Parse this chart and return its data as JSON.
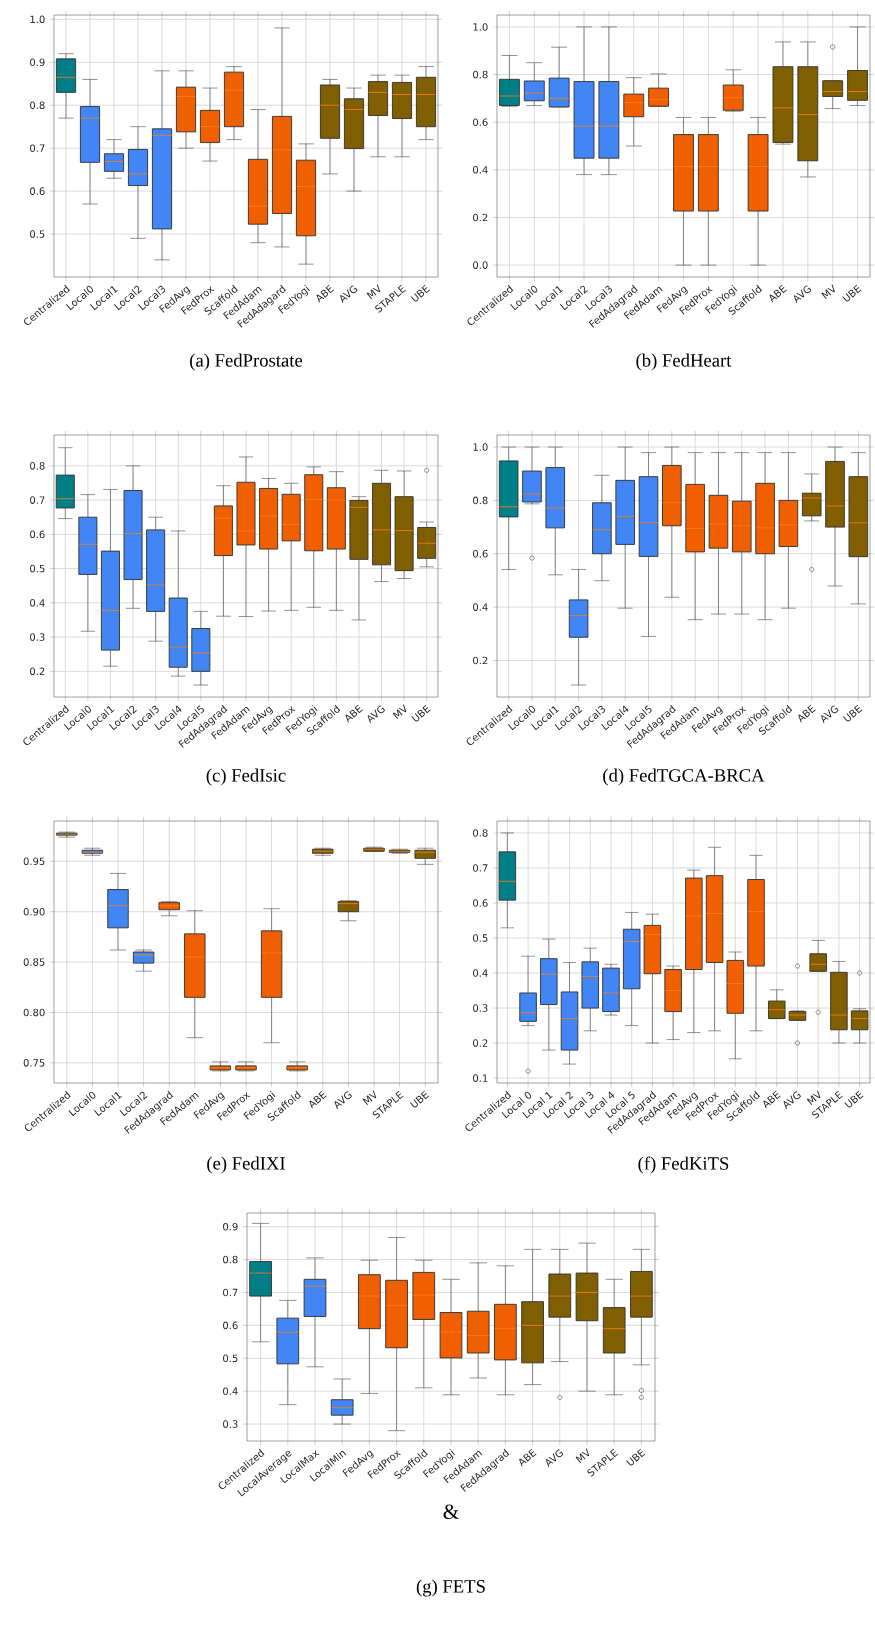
{
  "chart_data": [
    {
      "type": "box",
      "title": "(a) FedProstate",
      "grid": true,
      "ylim": [
        0.4,
        1.01
      ],
      "yticks": [
        0.5,
        0.6,
        0.7,
        0.8,
        0.9,
        {
          "value": 1.0,
          "label": "1.0"
        }
      ],
      "categories": [
        "Centralized",
        "Local0",
        "Local1",
        "Local2",
        "Local3",
        "FedAvg",
        "FedProx",
        "Scaffold",
        "FedAdam",
        "FedAdagard",
        "FedYogi",
        "ABE",
        "AVG",
        "MV",
        "STAPLE",
        "UBE"
      ],
      "colors": [
        "#007f87",
        "#4285f4",
        "#4285f4",
        "#4285f4",
        "#4285f4",
        "#f06000",
        "#f06000",
        "#f06000",
        "#f06000",
        "#f06000",
        "#f06000",
        "#7f5f00",
        "#7f5f00",
        "#7f5f00",
        "#7f5f00",
        "#7f5f00"
      ],
      "boxes": [
        {
          "low": 0.77,
          "q1": 0.83,
          "median": 0.865,
          "q3": 0.908,
          "high": 0.92
        },
        {
          "low": 0.57,
          "q1": 0.667,
          "median": 0.77,
          "q3": 0.797,
          "high": 0.86
        },
        {
          "low": 0.63,
          "q1": 0.646,
          "median": 0.669,
          "q3": 0.687,
          "high": 0.72
        },
        {
          "low": 0.49,
          "q1": 0.613,
          "median": 0.64,
          "q3": 0.697,
          "high": 0.75
        },
        {
          "low": 0.44,
          "q1": 0.512,
          "median": 0.73,
          "q3": 0.745,
          "high": 0.88
        },
        {
          "low": 0.7,
          "q1": 0.738,
          "median": 0.82,
          "q3": 0.842,
          "high": 0.88
        },
        {
          "low": 0.67,
          "q1": 0.713,
          "median": 0.75,
          "q3": 0.788,
          "high": 0.84
        },
        {
          "low": 0.72,
          "q1": 0.75,
          "median": 0.835,
          "q3": 0.877,
          "high": 0.89
        },
        {
          "low": 0.48,
          "q1": 0.523,
          "median": 0.565,
          "q3": 0.674,
          "high": 0.79
        },
        {
          "low": 0.47,
          "q1": 0.548,
          "median": 0.696,
          "q3": 0.774,
          "high": 0.98
        },
        {
          "low": 0.43,
          "q1": 0.496,
          "median": 0.611,
          "q3": 0.672,
          "high": 0.71
        },
        {
          "low": 0.64,
          "q1": 0.723,
          "median": 0.8,
          "q3": 0.847,
          "high": 0.86
        },
        {
          "low": 0.6,
          "q1": 0.699,
          "median": 0.79,
          "q3": 0.815,
          "high": 0.84
        },
        {
          "low": 0.68,
          "q1": 0.776,
          "median": 0.83,
          "q3": 0.855,
          "high": 0.87
        },
        {
          "low": 0.68,
          "q1": 0.769,
          "median": 0.825,
          "q3": 0.853,
          "high": 0.87
        },
        {
          "low": 0.72,
          "q1": 0.75,
          "median": 0.825,
          "q3": 0.865,
          "high": 0.89
        }
      ]
    },
    {
      "type": "box",
      "title": "(b) FedHeart",
      "grid": true,
      "ylim": [
        -0.05,
        1.05
      ],
      "yticks": [
        {
          "value": 0.0,
          "label": "0.0"
        },
        0.2,
        0.4,
        0.6,
        0.8,
        {
          "value": 1.0,
          "label": "1.0"
        }
      ],
      "categories": [
        "Centralized",
        "Local0",
        "Local1",
        "Local2",
        "Local3",
        "FedAdagrad",
        "FedAdam",
        "FedAvg",
        "FedProx",
        "FedYogi",
        "Scaffold",
        "ABE",
        "AVG",
        "MV",
        "UBE"
      ],
      "colors": [
        "#007f87",
        "#4285f4",
        "#4285f4",
        "#4285f4",
        "#4285f4",
        "#f06000",
        "#f06000",
        "#f06000",
        "#f06000",
        "#f06000",
        "#f06000",
        "#7f5f00",
        "#7f5f00",
        "#7f5f00",
        "#7f5f00"
      ],
      "boxes": [
        {
          "low": 0.667,
          "q1": 0.67,
          "median": 0.71,
          "q3": 0.78,
          "high": 0.88
        },
        {
          "low": 0.67,
          "q1": 0.69,
          "median": 0.722,
          "q3": 0.773,
          "high": 0.85
        },
        {
          "low": 0.664,
          "q1": 0.664,
          "median": 0.7,
          "q3": 0.785,
          "high": 0.915
        },
        {
          "low": 0.38,
          "q1": 0.449,
          "median": 0.584,
          "q3": 0.771,
          "high": 1.0
        },
        {
          "low": 0.38,
          "q1": 0.449,
          "median": 0.584,
          "q3": 0.771,
          "high": 1.0
        },
        {
          "low": 0.5,
          "q1": 0.623,
          "median": 0.682,
          "q3": 0.718,
          "high": 0.787
        },
        {
          "low": 0.667,
          "q1": 0.667,
          "median": 0.695,
          "q3": 0.743,
          "high": 0.803
        },
        {
          "low": 0.0,
          "q1": 0.227,
          "median": 0.414,
          "q3": 0.548,
          "high": 0.62
        },
        {
          "low": 0.0,
          "q1": 0.227,
          "median": 0.414,
          "q3": 0.548,
          "high": 0.62
        },
        {
          "low": 0.646,
          "q1": 0.65,
          "median": 0.703,
          "q3": 0.756,
          "high": 0.82
        },
        {
          "low": 0.0,
          "q1": 0.227,
          "median": 0.414,
          "q3": 0.548,
          "high": 0.62
        },
        {
          "low": 0.508,
          "q1": 0.515,
          "median": 0.66,
          "q3": 0.833,
          "high": 0.937
        },
        {
          "low": 0.37,
          "q1": 0.438,
          "median": 0.632,
          "q3": 0.833,
          "high": 0.937
        },
        {
          "low": 0.657,
          "q1": 0.708,
          "median": 0.729,
          "q3": 0.774,
          "high": 0.774,
          "outliers": [
            0.916
          ]
        },
        {
          "low": 0.67,
          "q1": 0.692,
          "median": 0.729,
          "q3": 0.817,
          "high": 1.0
        }
      ]
    },
    {
      "type": "box",
      "title": "(c) FedIsic",
      "grid": true,
      "ylim": [
        0.125,
        0.89
      ],
      "yticks": [
        0.2,
        0.3,
        0.4,
        0.5,
        0.6,
        0.7,
        0.8
      ],
      "categories": [
        "Centralized",
        "Local0",
        "Local1",
        "Local2",
        "Local3",
        "Local4",
        "Local5",
        "FedAdagrad",
        "FedAdam",
        "FedAvg",
        "FedProx",
        "FedYogi",
        "Scaffold",
        "ABE",
        "AVG",
        "MV",
        "UBE"
      ],
      "colors": [
        "#007f87",
        "#4285f4",
        "#4285f4",
        "#4285f4",
        "#4285f4",
        "#4285f4",
        "#4285f4",
        "#f06000",
        "#f06000",
        "#f06000",
        "#f06000",
        "#f06000",
        "#f06000",
        "#7f5f00",
        "#7f5f00",
        "#7f5f00",
        "#7f5f00"
      ],
      "boxes": [
        {
          "low": 0.646,
          "q1": 0.677,
          "median": 0.704,
          "q3": 0.773,
          "high": 0.853
        },
        {
          "low": 0.317,
          "q1": 0.483,
          "median": 0.571,
          "q3": 0.65,
          "high": 0.716
        },
        {
          "low": 0.215,
          "q1": 0.262,
          "median": 0.378,
          "q3": 0.551,
          "high": 0.731
        },
        {
          "low": 0.384,
          "q1": 0.468,
          "median": 0.602,
          "q3": 0.728,
          "high": 0.8
        },
        {
          "low": 0.288,
          "q1": 0.375,
          "median": 0.452,
          "q3": 0.613,
          "high": 0.65
        },
        {
          "low": 0.186,
          "q1": 0.212,
          "median": 0.271,
          "q3": 0.414,
          "high": 0.61
        },
        {
          "low": 0.16,
          "q1": 0.2,
          "median": 0.254,
          "q3": 0.325,
          "high": 0.375
        },
        {
          "low": 0.361,
          "q1": 0.538,
          "median": 0.647,
          "q3": 0.683,
          "high": 0.742
        },
        {
          "low": 0.36,
          "q1": 0.569,
          "median": 0.61,
          "q3": 0.752,
          "high": 0.826
        },
        {
          "low": 0.376,
          "q1": 0.557,
          "median": 0.653,
          "q3": 0.734,
          "high": 0.763
        },
        {
          "low": 0.378,
          "q1": 0.581,
          "median": 0.629,
          "q3": 0.717,
          "high": 0.749
        },
        {
          "low": 0.387,
          "q1": 0.552,
          "median": 0.702,
          "q3": 0.774,
          "high": 0.797
        },
        {
          "low": 0.378,
          "q1": 0.557,
          "median": 0.7,
          "q3": 0.736,
          "high": 0.783
        },
        {
          "low": 0.35,
          "q1": 0.527,
          "median": 0.679,
          "q3": 0.699,
          "high": 0.71
        },
        {
          "low": 0.462,
          "q1": 0.511,
          "median": 0.613,
          "q3": 0.749,
          "high": 0.787
        },
        {
          "low": 0.471,
          "q1": 0.494,
          "median": 0.611,
          "q3": 0.71,
          "high": 0.785
        },
        {
          "low": 0.505,
          "q1": 0.53,
          "median": 0.574,
          "q3": 0.62,
          "high": 0.636,
          "outliers": [
            0.787
          ]
        }
      ]
    },
    {
      "type": "box",
      "title": "(d) FedTGCA-BRCA",
      "grid": true,
      "ylim": [
        0.063,
        1.045
      ],
      "yticks": [
        0.2,
        0.4,
        0.6,
        0.8,
        {
          "value": 1.0,
          "label": "1.0"
        }
      ],
      "categories": [
        "Centralized",
        "Local0",
        "Local1",
        "Local2",
        "Local3",
        "Local4",
        "Local5",
        "FedAdagrad",
        "FedAdam",
        "FedAvg",
        "FedProx",
        "FedYogi",
        "Scaffold",
        "ABE",
        "AVG",
        "UBE"
      ],
      "colors": [
        "#007f87",
        "#4285f4",
        "#4285f4",
        "#4285f4",
        "#4285f4",
        "#4285f4",
        "#4285f4",
        "#f06000",
        "#f06000",
        "#f06000",
        "#f06000",
        "#f06000",
        "#f06000",
        "#7f5f00",
        "#7f5f00",
        "#7f5f00"
      ],
      "boxes": [
        {
          "low": 0.541,
          "q1": 0.738,
          "median": 0.776,
          "q3": 0.948,
          "high": 1.0
        },
        {
          "low": 0.787,
          "q1": 0.794,
          "median": 0.824,
          "q3": 0.91,
          "high": 1.0,
          "outliers": [
            0.584
          ]
        },
        {
          "low": 0.521,
          "q1": 0.697,
          "median": 0.772,
          "q3": 0.923,
          "high": 1.0
        },
        {
          "low": 0.108,
          "q1": 0.287,
          "median": 0.368,
          "q3": 0.427,
          "high": 0.541
        },
        {
          "low": 0.499,
          "q1": 0.6,
          "median": 0.69,
          "q3": 0.791,
          "high": 0.894
        },
        {
          "low": 0.396,
          "q1": 0.635,
          "median": 0.74,
          "q3": 0.875,
          "high": 1.0
        },
        {
          "low": 0.29,
          "q1": 0.59,
          "median": 0.716,
          "q3": 0.889,
          "high": 0.979
        },
        {
          "low": 0.437,
          "q1": 0.705,
          "median": 0.791,
          "q3": 0.931,
          "high": 1.0
        },
        {
          "low": 0.353,
          "q1": 0.607,
          "median": 0.695,
          "q3": 0.86,
          "high": 0.979
        },
        {
          "low": 0.374,
          "q1": 0.621,
          "median": 0.712,
          "q3": 0.819,
          "high": 0.979
        },
        {
          "low": 0.374,
          "q1": 0.607,
          "median": 0.705,
          "q3": 0.797,
          "high": 0.979
        },
        {
          "low": 0.353,
          "q1": 0.6,
          "median": 0.697,
          "q3": 0.864,
          "high": 0.979
        },
        {
          "low": 0.396,
          "q1": 0.627,
          "median": 0.708,
          "q3": 0.8,
          "high": 0.979
        },
        {
          "low": 0.723,
          "q1": 0.742,
          "median": 0.809,
          "q3": 0.827,
          "high": 0.899,
          "outliers": [
            0.541
          ]
        },
        {
          "low": 0.479,
          "q1": 0.7,
          "median": 0.779,
          "q3": 0.946,
          "high": 1.0
        },
        {
          "low": 0.412,
          "q1": 0.589,
          "median": 0.716,
          "q3": 0.889,
          "high": 0.979
        }
      ]
    },
    {
      "type": "box",
      "title": "(e) FedIXI",
      "grid": true,
      "ylim": [
        0.73,
        0.99
      ],
      "yticks": [
        0.75,
        {
          "value": 0.8,
          "label": "0.80"
        },
        0.85,
        {
          "value": 0.9,
          "label": "0.90"
        },
        0.95
      ],
      "categories": [
        "Centralized",
        "Local0",
        "Local1",
        "Local2",
        "FedAdagrad",
        "FedAdam",
        "FedAvg",
        "FedProx",
        "FedYogi",
        "Scaffold",
        "ABE",
        "AVG",
        "MV",
        "STAPLE",
        "UBE"
      ],
      "colors": [
        "#007f87",
        "#4285f4",
        "#4285f4",
        "#4285f4",
        "#f06000",
        "#f06000",
        "#f06000",
        "#f06000",
        "#f06000",
        "#f06000",
        "#7f5f00",
        "#7f5f00",
        "#7f5f00",
        "#7f5f00",
        "#7f5f00"
      ],
      "boxes": [
        {
          "low": 0.974,
          "q1": 0.976,
          "median": 0.977,
          "q3": 0.978,
          "high": 0.979
        },
        {
          "low": 0.956,
          "q1": 0.958,
          "median": 0.959,
          "q3": 0.961,
          "high": 0.963
        },
        {
          "low": 0.862,
          "q1": 0.884,
          "median": 0.906,
          "q3": 0.922,
          "high": 0.938
        },
        {
          "low": 0.841,
          "q1": 0.849,
          "median": 0.857,
          "q3": 0.86,
          "high": 0.862
        },
        {
          "low": 0.896,
          "q1": 0.902,
          "median": 0.906,
          "q3": 0.909,
          "high": 0.91
        },
        {
          "low": 0.775,
          "q1": 0.815,
          "median": 0.855,
          "q3": 0.878,
          "high": 0.901
        },
        {
          "low": 0.742,
          "q1": 0.743,
          "median": 0.745,
          "q3": 0.747,
          "high": 0.751
        },
        {
          "low": 0.742,
          "q1": 0.743,
          "median": 0.745,
          "q3": 0.747,
          "high": 0.751
        },
        {
          "low": 0.77,
          "q1": 0.815,
          "median": 0.859,
          "q3": 0.881,
          "high": 0.903
        },
        {
          "low": 0.742,
          "q1": 0.743,
          "median": 0.745,
          "q3": 0.747,
          "high": 0.751
        },
        {
          "low": 0.956,
          "q1": 0.958,
          "median": 0.96,
          "q3": 0.962,
          "high": 0.963
        },
        {
          "low": 0.891,
          "q1": 0.9,
          "median": 0.908,
          "q3": 0.91,
          "high": 0.911
        },
        {
          "low": 0.96,
          "q1": 0.96,
          "median": 0.962,
          "q3": 0.963,
          "high": 0.964
        },
        {
          "low": 0.958,
          "q1": 0.959,
          "median": 0.96,
          "q3": 0.961,
          "high": 0.962
        },
        {
          "low": 0.947,
          "q1": 0.953,
          "median": 0.959,
          "q3": 0.961,
          "high": 0.963
        }
      ]
    },
    {
      "type": "box",
      "title": "(f) FedKiTS",
      "grid": true,
      "ylim": [
        0.086,
        0.834
      ],
      "yticks": [
        0.1,
        0.2,
        0.3,
        0.4,
        0.5,
        0.6,
        0.7,
        0.8
      ],
      "categories": [
        "Centralized",
        "Local 0",
        "Local 1",
        "Local 2",
        "Local 3",
        "Local 4",
        "Local 5",
        "FedAdagrad",
        "FedAdam",
        "FedAvg",
        "FedProx",
        "FedYogi",
        "Scaffold",
        "ABE",
        "AVG",
        "MV",
        "STAPLE",
        "UBE"
      ],
      "colors": [
        "#007f87",
        "#4285f4",
        "#4285f4",
        "#4285f4",
        "#4285f4",
        "#4285f4",
        "#4285f4",
        "#f06000",
        "#f06000",
        "#f06000",
        "#f06000",
        "#f06000",
        "#f06000",
        "#7f5f00",
        "#7f5f00",
        "#7f5f00",
        "#7f5f00",
        "#7f5f00"
      ],
      "boxes": [
        {
          "low": 0.529,
          "q1": 0.608,
          "median": 0.662,
          "q3": 0.746,
          "high": 0.8
        },
        {
          "low": 0.25,
          "q1": 0.262,
          "median": 0.287,
          "q3": 0.343,
          "high": 0.448,
          "outliers": [
            0.12
          ]
        },
        {
          "low": 0.18,
          "q1": 0.31,
          "median": 0.397,
          "q3": 0.441,
          "high": 0.497
        },
        {
          "low": 0.14,
          "q1": 0.18,
          "median": 0.27,
          "q3": 0.346,
          "high": 0.43
        },
        {
          "low": 0.235,
          "q1": 0.3,
          "median": 0.39,
          "q3": 0.432,
          "high": 0.471
        },
        {
          "low": 0.28,
          "q1": 0.29,
          "median": 0.343,
          "q3": 0.414,
          "high": 0.425
        },
        {
          "low": 0.25,
          "q1": 0.355,
          "median": 0.49,
          "q3": 0.525,
          "high": 0.573
        },
        {
          "low": 0.2,
          "q1": 0.398,
          "median": 0.51,
          "q3": 0.536,
          "high": 0.568
        },
        {
          "low": 0.21,
          "q1": 0.29,
          "median": 0.35,
          "q3": 0.41,
          "high": 0.42
        },
        {
          "low": 0.23,
          "q1": 0.41,
          "median": 0.563,
          "q3": 0.671,
          "high": 0.694
        },
        {
          "low": 0.235,
          "q1": 0.43,
          "median": 0.57,
          "q3": 0.678,
          "high": 0.759
        },
        {
          "low": 0.155,
          "q1": 0.285,
          "median": 0.37,
          "q3": 0.436,
          "high": 0.46
        },
        {
          "low": 0.235,
          "q1": 0.42,
          "median": 0.576,
          "q3": 0.667,
          "high": 0.736
        },
        {
          "low": 0.27,
          "q1": 0.27,
          "median": 0.295,
          "q3": 0.32,
          "high": 0.352
        },
        {
          "low": 0.265,
          "q1": 0.265,
          "median": 0.28,
          "q3": 0.29,
          "high": 0.292,
          "outliers": [
            0.42,
            0.2
          ]
        },
        {
          "low": 0.405,
          "q1": 0.405,
          "median": 0.425,
          "q3": 0.455,
          "high": 0.493,
          "outliers": [
            0.288
          ]
        },
        {
          "low": 0.2,
          "q1": 0.238,
          "median": 0.28,
          "q3": 0.402,
          "high": 0.433
        },
        {
          "low": 0.2,
          "q1": 0.238,
          "median": 0.27,
          "q3": 0.292,
          "high": 0.298,
          "outliers": [
            0.4
          ]
        }
      ]
    },
    {
      "type": "box",
      "title": "(g) FETS",
      "grid": true,
      "ylim": [
        0.2485,
        0.9415
      ],
      "yticks": [
        0.3,
        0.4,
        0.5,
        0.6,
        0.7,
        0.8,
        0.9
      ],
      "annotations": [
        "&"
      ],
      "categories": [
        "Centralized",
        "LocalAverage",
        "LocalMax",
        "LocalMin",
        "FedAvg",
        "FedProx",
        "Scaffold",
        "FedYogi",
        "FedAdam",
        "FedAdagrad",
        "ABE",
        "AVG",
        "MV",
        "STAPLE",
        "UBE"
      ],
      "colors": [
        "#007f87",
        "#4285f4",
        "#4285f4",
        "#4285f4",
        "#f06000",
        "#f06000",
        "#f06000",
        "#f06000",
        "#f06000",
        "#f06000",
        "#7f5f00",
        "#7f5f00",
        "#7f5f00",
        "#7f5f00",
        "#7f5f00"
      ],
      "boxes": [
        {
          "low": 0.55,
          "q1": 0.689,
          "median": 0.759,
          "q3": 0.794,
          "high": 0.91
        },
        {
          "low": 0.359,
          "q1": 0.483,
          "median": 0.579,
          "q3": 0.622,
          "high": 0.676
        },
        {
          "low": 0.474,
          "q1": 0.627,
          "median": 0.719,
          "q3": 0.74,
          "high": 0.805
        },
        {
          "low": 0.3,
          "q1": 0.327,
          "median": 0.35,
          "q3": 0.374,
          "high": 0.437
        },
        {
          "low": 0.393,
          "q1": 0.59,
          "median": 0.689,
          "q3": 0.754,
          "high": 0.798
        },
        {
          "low": 0.28,
          "q1": 0.532,
          "median": 0.661,
          "q3": 0.737,
          "high": 0.867
        },
        {
          "low": 0.41,
          "q1": 0.618,
          "median": 0.692,
          "q3": 0.761,
          "high": 0.798
        },
        {
          "low": 0.389,
          "q1": 0.501,
          "median": 0.58,
          "q3": 0.639,
          "high": 0.74
        },
        {
          "low": 0.44,
          "q1": 0.516,
          "median": 0.569,
          "q3": 0.643,
          "high": 0.79
        },
        {
          "low": 0.389,
          "q1": 0.495,
          "median": 0.59,
          "q3": 0.664,
          "high": 0.781
        },
        {
          "low": 0.42,
          "q1": 0.486,
          "median": 0.6,
          "q3": 0.672,
          "high": 0.831
        },
        {
          "low": 0.49,
          "q1": 0.625,
          "median": 0.689,
          "q3": 0.756,
          "high": 0.831,
          "outliers": [
            0.381
          ]
        },
        {
          "low": 0.4,
          "q1": 0.614,
          "median": 0.7,
          "q3": 0.759,
          "high": 0.85
        },
        {
          "low": 0.389,
          "q1": 0.516,
          "median": 0.59,
          "q3": 0.654,
          "high": 0.74
        },
        {
          "low": 0.48,
          "q1": 0.625,
          "median": 0.689,
          "q3": 0.764,
          "high": 0.831,
          "outliers": [
            0.402,
            0.381
          ]
        }
      ]
    }
  ]
}
